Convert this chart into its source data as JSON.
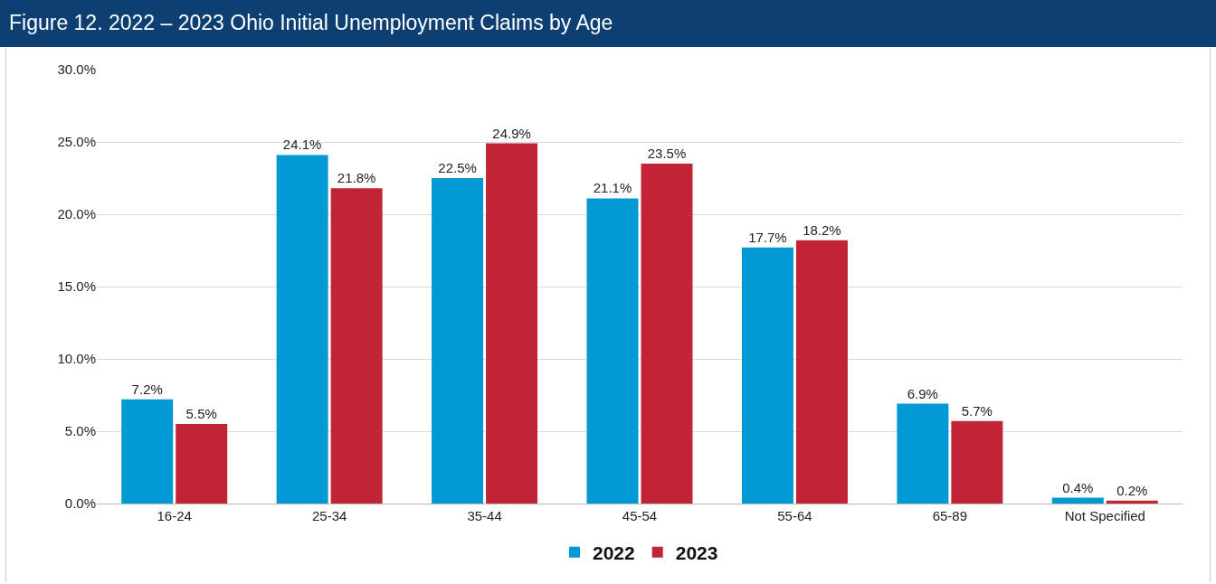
{
  "chart_data": {
    "type": "bar",
    "title": "Figure 12. 2022 – 2023 Ohio Initial Unemployment Claims by Age",
    "categories": [
      "16-24",
      "25-34",
      "35-44",
      "45-54",
      "55-64",
      "65-89",
      "Not Specified"
    ],
    "series": [
      {
        "name": "2022",
        "color": "#0099d4",
        "values": [
          7.2,
          24.1,
          22.5,
          21.1,
          17.7,
          6.9,
          0.4
        ],
        "value_labels": [
          "7.2%",
          "24.1%",
          "22.5%",
          "21.1%",
          "17.7%",
          "6.9%",
          "0.4%"
        ]
      },
      {
        "name": "2023",
        "color": "#c12535",
        "values": [
          5.5,
          21.8,
          24.9,
          23.5,
          18.2,
          5.7,
          0.2
        ],
        "value_labels": [
          "5.5%",
          "21.8%",
          "24.9%",
          "23.5%",
          "18.2%",
          "5.7%",
          "0.2%"
        ]
      }
    ],
    "ylim": [
      0,
      30
    ],
    "yticks": [
      {
        "value": 0,
        "label": "0.0%"
      },
      {
        "value": 5,
        "label": "5.0%"
      },
      {
        "value": 10,
        "label": "10.0%"
      },
      {
        "value": 15,
        "label": "15.0%"
      },
      {
        "value": 20,
        "label": "20.0%"
      },
      {
        "value": 25,
        "label": "25.0%"
      },
      {
        "value": 30,
        "label": "30.0%"
      }
    ],
    "grid": "y",
    "legend": "bottom"
  }
}
